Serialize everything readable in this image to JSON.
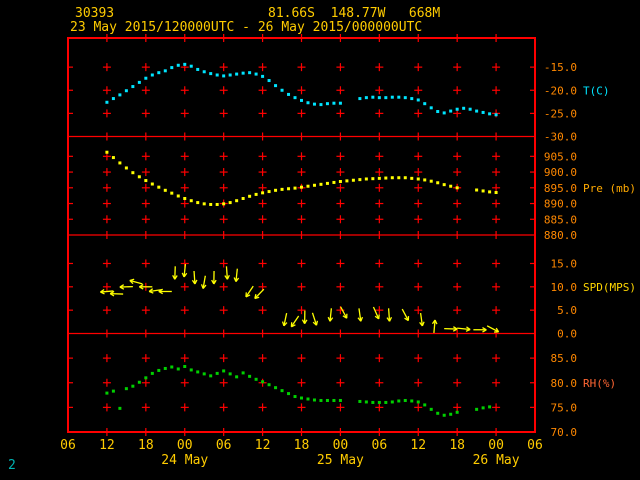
{
  "page": {
    "page_number": "2"
  },
  "header": {
    "station_id": "30393",
    "location": "81.66S  148.77W   668M",
    "time_range": "23 May 2015/120000UTC - 26 May 2015/000000UTC"
  },
  "colors": {
    "background": "#000000",
    "grid": "#ff0000",
    "tick_label": "#ff8800",
    "header_text": "#ffcc00",
    "axis_hour_text": "#ffcc00",
    "page_number": "#00b3b3",
    "temperature": "#00e5ff",
    "pressure": "#ffff00",
    "wind": "#ffff00",
    "humidity": "#00d000"
  },
  "chart_data": {
    "type": "meteogram",
    "title": "30393  81.66S 148.77W 668M",
    "subtitle": "23 May 2015/120000UTC - 26 May 2015/000000UTC",
    "x_axis": {
      "unit": "hours from 06 UTC 23 May 2015",
      "range": [
        0,
        72
      ],
      "tick_step": 6,
      "hour_labels": [
        "06",
        "12",
        "18",
        "00",
        "06",
        "12",
        "18",
        "00",
        "06",
        "12",
        "18",
        "00",
        "06"
      ],
      "date_labels": [
        {
          "text": "24 May",
          "at_hour": 18
        },
        {
          "text": "25 May",
          "at_hour": 42
        },
        {
          "text": "26 May",
          "at_hour": 66
        }
      ]
    },
    "panels": [
      {
        "name": "temperature",
        "type": "scatter",
        "series_label": "T(C)",
        "color": "#00e5ff",
        "label_color": "#00e5ff",
        "label_at": -20,
        "y_top": -8.7,
        "y_bottom": -30.0,
        "ticks": [
          {
            "v": -15,
            "t": "-15.0"
          },
          {
            "v": -20,
            "t": "-20.0"
          },
          {
            "v": -25,
            "t": "-25.0"
          },
          {
            "v": -30,
            "t": "-30.0"
          }
        ],
        "points": [
          [
            6,
            -22.6
          ],
          [
            7,
            -21.8
          ],
          [
            8,
            -21.0
          ],
          [
            9,
            -20.1
          ],
          [
            10,
            -19.2
          ],
          [
            11,
            -18.3
          ],
          [
            12,
            -17.4
          ],
          [
            13,
            -16.7
          ],
          [
            14,
            -16.2
          ],
          [
            15,
            -15.8
          ],
          [
            16,
            -15.1
          ],
          [
            17,
            -14.6
          ],
          [
            18,
            -14.4
          ],
          [
            19,
            -14.8
          ],
          [
            20,
            -15.5
          ],
          [
            21,
            -16.0
          ],
          [
            22,
            -16.4
          ],
          [
            23,
            -16.7
          ],
          [
            24,
            -16.9
          ],
          [
            25,
            -16.7
          ],
          [
            26,
            -16.5
          ],
          [
            27,
            -16.3
          ],
          [
            28,
            -16.2
          ],
          [
            29,
            -16.5
          ],
          [
            30,
            -17.0
          ],
          [
            31,
            -17.9
          ],
          [
            32,
            -19.0
          ],
          [
            33,
            -20.0
          ],
          [
            34,
            -20.9
          ],
          [
            35,
            -21.6
          ],
          [
            36,
            -22.2
          ],
          [
            37,
            -22.7
          ],
          [
            38,
            -23.0
          ],
          [
            39,
            -23.1
          ],
          [
            40,
            -22.9
          ],
          [
            41,
            -22.8
          ],
          [
            42,
            -22.8
          ],
          [
            45,
            -21.8
          ],
          [
            46,
            -21.6
          ],
          [
            47,
            -21.5
          ],
          [
            48,
            -21.6
          ],
          [
            49,
            -21.6
          ],
          [
            50,
            -21.5
          ],
          [
            51,
            -21.5
          ],
          [
            52,
            -21.6
          ],
          [
            53,
            -21.8
          ],
          [
            54,
            -22.1
          ],
          [
            55,
            -22.9
          ],
          [
            56,
            -23.8
          ],
          [
            57,
            -24.6
          ],
          [
            58,
            -24.9
          ],
          [
            59,
            -24.5
          ],
          [
            60,
            -24.1
          ],
          [
            61,
            -23.9
          ],
          [
            62,
            -24.1
          ],
          [
            63,
            -24.5
          ],
          [
            64,
            -24.8
          ],
          [
            65,
            -25.1
          ],
          [
            66,
            -25.3
          ]
        ]
      },
      {
        "name": "pressure",
        "type": "scatter",
        "series_label": "Pre (mb)",
        "color": "#ffff00",
        "label_color": "#ffaa00",
        "label_at": 895,
        "y_top": 911.3,
        "y_bottom": 880.0,
        "ticks": [
          {
            "v": 905,
            "t": "905.0"
          },
          {
            "v": 900,
            "t": "900.0"
          },
          {
            "v": 895,
            "t": "895.0"
          },
          {
            "v": 890,
            "t": "890.0"
          },
          {
            "v": 885,
            "t": "885.0"
          },
          {
            "v": 880,
            "t": "880.0"
          }
        ],
        "points": [
          [
            6,
            906.3
          ],
          [
            7,
            904.6
          ],
          [
            8,
            902.9
          ],
          [
            9,
            901.3
          ],
          [
            10,
            899.8
          ],
          [
            11,
            898.5
          ],
          [
            12,
            897.3
          ],
          [
            13,
            896.2
          ],
          [
            14,
            895.2
          ],
          [
            15,
            894.2
          ],
          [
            16,
            893.3
          ],
          [
            17,
            892.4
          ],
          [
            18,
            891.6
          ],
          [
            19,
            890.9
          ],
          [
            20,
            890.3
          ],
          [
            21,
            889.9
          ],
          [
            22,
            889.7
          ],
          [
            23,
            889.7
          ],
          [
            24,
            889.9
          ],
          [
            25,
            890.3
          ],
          [
            26,
            890.9
          ],
          [
            27,
            891.6
          ],
          [
            28,
            892.3
          ],
          [
            29,
            892.9
          ],
          [
            30,
            893.4
          ],
          [
            31,
            893.8
          ],
          [
            32,
            894.2
          ],
          [
            33,
            894.5
          ],
          [
            34,
            894.7
          ],
          [
            35,
            894.9
          ],
          [
            36,
            895.2
          ],
          [
            37,
            895.5
          ],
          [
            38,
            895.8
          ],
          [
            39,
            896.1
          ],
          [
            40,
            896.4
          ],
          [
            41,
            896.7
          ],
          [
            42,
            897.0
          ],
          [
            43,
            897.2
          ],
          [
            44,
            897.4
          ],
          [
            45,
            897.6
          ],
          [
            46,
            897.8
          ],
          [
            47,
            897.9
          ],
          [
            48,
            898.0
          ],
          [
            49,
            898.1
          ],
          [
            50,
            898.2
          ],
          [
            51,
            898.2
          ],
          [
            52,
            898.2
          ],
          [
            53,
            898.0
          ],
          [
            54,
            897.8
          ],
          [
            55,
            897.5
          ],
          [
            56,
            897.1
          ],
          [
            57,
            896.6
          ],
          [
            58,
            896.0
          ],
          [
            59,
            895.5
          ],
          [
            60,
            895.0
          ],
          [
            63,
            894.3
          ],
          [
            64,
            894.0
          ],
          [
            65,
            893.7
          ],
          [
            66,
            893.5
          ]
        ]
      },
      {
        "name": "wind",
        "type": "vector",
        "series_label": "SPD(MPS)",
        "color": "#ffff00",
        "label_color": "#ffd700",
        "label_at": 10,
        "y_top": 21.1,
        "y_bottom": 0.0,
        "dir_convention": "degrees clockwise from screen-up; arrow points toward this direction",
        "ticks": [
          {
            "v": 15,
            "t": "15.0"
          },
          {
            "v": 10,
            "t": "10.0"
          },
          {
            "v": 5,
            "t": "5.0"
          },
          {
            "v": 0,
            "t": "0.0"
          }
        ],
        "points": [
          [
            6,
            9.0,
            265
          ],
          [
            7.5,
            8.5,
            272
          ],
          [
            9,
            10.0,
            268
          ],
          [
            10.5,
            11.0,
            285
          ],
          [
            12,
            10.0,
            270
          ],
          [
            13.5,
            9.2,
            262
          ],
          [
            15,
            9.0,
            270
          ],
          [
            16.5,
            13.0,
            182
          ],
          [
            18,
            13.5,
            186
          ],
          [
            19.5,
            12.0,
            176
          ],
          [
            21,
            11.0,
            190
          ],
          [
            22.5,
            12.0,
            181
          ],
          [
            24.5,
            13.0,
            176
          ],
          [
            26,
            12.5,
            186
          ],
          [
            28,
            9.0,
            214
          ],
          [
            29.5,
            8.5,
            224
          ],
          [
            33.5,
            3.0,
            192
          ],
          [
            35,
            2.6,
            214
          ],
          [
            36.5,
            3.5,
            181
          ],
          [
            38,
            3.1,
            162
          ],
          [
            40.5,
            4.0,
            186
          ],
          [
            42.5,
            4.5,
            152
          ],
          [
            45,
            4.0,
            172
          ],
          [
            47.5,
            4.4,
            156
          ],
          [
            49.5,
            4.0,
            176
          ],
          [
            52,
            4.0,
            152
          ],
          [
            54.5,
            3.0,
            172
          ],
          [
            56.5,
            1.5,
            5
          ],
          [
            59,
            1.0,
            92
          ],
          [
            61,
            1.0,
            96
          ],
          [
            63.5,
            0.8,
            90
          ],
          [
            65.5,
            1.0,
            118
          ]
        ]
      },
      {
        "name": "humidity",
        "type": "scatter",
        "series_label": "RH(%)",
        "color": "#00d000",
        "label_color": "#ff6633",
        "label_at": 80,
        "y_top": 90.0,
        "y_bottom": 70.0,
        "ticks": [
          {
            "v": 85,
            "t": "85.0"
          },
          {
            "v": 80,
            "t": "80.0"
          },
          {
            "v": 75,
            "t": "75.0"
          },
          {
            "v": 70,
            "t": "70.0"
          }
        ],
        "points": [
          [
            6,
            77.9
          ],
          [
            7,
            78.3
          ],
          [
            8,
            74.8
          ],
          [
            9,
            78.8
          ],
          [
            10,
            79.3
          ],
          [
            11,
            80.1
          ],
          [
            12,
            81.0
          ],
          [
            13,
            81.9
          ],
          [
            14,
            82.5
          ],
          [
            15,
            82.9
          ],
          [
            16,
            83.2
          ],
          [
            17,
            82.8
          ],
          [
            18,
            83.3
          ],
          [
            19,
            82.6
          ],
          [
            20,
            82.2
          ],
          [
            21,
            81.8
          ],
          [
            22,
            81.4
          ],
          [
            23,
            81.9
          ],
          [
            24,
            82.4
          ],
          [
            25,
            81.8
          ],
          [
            26,
            81.2
          ],
          [
            27,
            82.0
          ],
          [
            28,
            81.3
          ],
          [
            29,
            80.7
          ],
          [
            30,
            80.2
          ],
          [
            31,
            79.6
          ],
          [
            32,
            79.0
          ],
          [
            33,
            78.4
          ],
          [
            34,
            77.8
          ],
          [
            35,
            77.2
          ],
          [
            36,
            76.9
          ],
          [
            37,
            76.7
          ],
          [
            38,
            76.5
          ],
          [
            39,
            76.4
          ],
          [
            40,
            76.4
          ],
          [
            41,
            76.4
          ],
          [
            42,
            76.4
          ],
          [
            45,
            76.2
          ],
          [
            46,
            76.1
          ],
          [
            47,
            76.0
          ],
          [
            48,
            76.0
          ],
          [
            49,
            76.0
          ],
          [
            50,
            76.1
          ],
          [
            51,
            76.3
          ],
          [
            52,
            76.4
          ],
          [
            53,
            76.3
          ],
          [
            54,
            76.1
          ],
          [
            55,
            75.5
          ],
          [
            56,
            74.6
          ],
          [
            57,
            73.8
          ],
          [
            58,
            73.4
          ],
          [
            59,
            73.6
          ],
          [
            60,
            74.0
          ],
          [
            63,
            74.6
          ],
          [
            64,
            74.9
          ],
          [
            65,
            75.1
          ]
        ]
      }
    ]
  }
}
